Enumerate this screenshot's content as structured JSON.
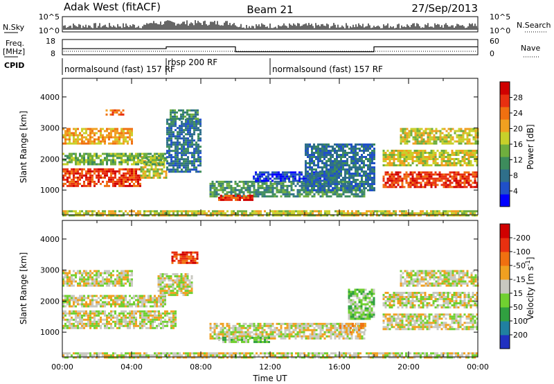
{
  "header": {
    "title": "Adak West (fitACF)",
    "beam": "Beam 21",
    "date": "27/Sep/2013"
  },
  "nsky_panel": {
    "left_label": "N.Sky",
    "right_label": "N.Search",
    "left_ticks": [
      "10^5",
      "10^0"
    ],
    "right_ticks": [
      "10^5",
      "10^0"
    ]
  },
  "freq_panel": {
    "left_label_line1": "Freq.",
    "left_label_line2": "[MHz]",
    "right_label": "Nave",
    "left_ticks": [
      "18",
      "8"
    ],
    "right_ticks": [
      "60",
      "0"
    ],
    "freq_steps": [
      {
        "from_ut": 0,
        "to_ut": 6,
        "mhz": 12.0
      },
      {
        "from_ut": 6,
        "to_ut": 10,
        "mhz": 13.2
      },
      {
        "from_ut": 10,
        "to_ut": 18,
        "mhz": 10.0
      },
      {
        "from_ut": 18,
        "to_ut": 24,
        "mhz": 13.2
      }
    ]
  },
  "cpid": {
    "label": "CPID",
    "segments": [
      {
        "from_ut": 0,
        "to_ut": 6,
        "text": "normalsound (fast) 157 RF"
      },
      {
        "from_ut": 6,
        "to_ut": 12,
        "text": "rbsp 200 RF"
      },
      {
        "from_ut": 12,
        "to_ut": 24,
        "text": "normalsound (fast) 157 RF"
      }
    ]
  },
  "chart_data": [
    {
      "type": "heatmap",
      "xlabel": "",
      "ylabel": "Slant Range [km]",
      "xlim": [
        0,
        24
      ],
      "ylim": [
        200,
        4600
      ],
      "yticks": [
        "1000",
        "2000",
        "3000",
        "4000"
      ],
      "colorbar": {
        "label": "Power [dB]",
        "ticks": [
          "4",
          "8",
          "12",
          "16",
          "20",
          "24",
          "28"
        ],
        "colors": [
          "#0000ff",
          "#2050c8",
          "#2f6f8a",
          "#3d8c5c",
          "#6fae3e",
          "#c8d02a",
          "#f0a020",
          "#f07010",
          "#e83010",
          "#d00000"
        ]
      },
      "bands": [
        {
          "from_ut": 0,
          "to_ut": 4.5,
          "range_lo": 1100,
          "range_hi": 1700,
          "level": 8
        },
        {
          "from_ut": 4.5,
          "to_ut": 6.0,
          "range_lo": 1400,
          "range_hi": 2100,
          "level": 5
        },
        {
          "from_ut": 0,
          "to_ut": 6.0,
          "range_lo": 1800,
          "range_hi": 2200,
          "level": 4
        },
        {
          "from_ut": 0,
          "to_ut": 4.0,
          "range_lo": 2500,
          "range_hi": 3000,
          "level": 6
        },
        {
          "from_ut": 2.5,
          "to_ut": 3.5,
          "range_lo": 3450,
          "range_hi": 3600,
          "level": 7
        },
        {
          "from_ut": 6.0,
          "to_ut": 8.0,
          "range_lo": 1600,
          "range_hi": 3300,
          "level": 2
        },
        {
          "from_ut": 6.2,
          "to_ut": 7.8,
          "range_lo": 3300,
          "range_hi": 3600,
          "level": 3
        },
        {
          "from_ut": 8.5,
          "to_ut": 17.5,
          "range_lo": 800,
          "range_hi": 1300,
          "level": 3
        },
        {
          "from_ut": 11.0,
          "to_ut": 15.5,
          "range_lo": 1300,
          "range_hi": 1600,
          "level": 1
        },
        {
          "from_ut": 9.0,
          "to_ut": 11.0,
          "range_lo": 650,
          "range_hi": 850,
          "level": 8
        },
        {
          "from_ut": 0,
          "to_ut": 24,
          "range_lo": 200,
          "range_hi": 350,
          "level": 5
        },
        {
          "from_ut": 18.5,
          "to_ut": 24,
          "range_lo": 1100,
          "range_hi": 1600,
          "level": 8
        },
        {
          "from_ut": 18.5,
          "to_ut": 24,
          "range_lo": 1800,
          "range_hi": 2300,
          "level": 5
        },
        {
          "from_ut": 19.5,
          "to_ut": 24,
          "range_lo": 2500,
          "range_hi": 3000,
          "level": 5
        },
        {
          "from_ut": 14.0,
          "to_ut": 18.0,
          "range_lo": 1000,
          "range_hi": 2500,
          "level": 2
        }
      ]
    },
    {
      "type": "heatmap",
      "xlabel": "Time UT",
      "ylabel": "Slant Range [km]",
      "xlim": [
        0,
        24
      ],
      "ylim": [
        200,
        4600
      ],
      "xticks": [
        "00:00",
        "04:00",
        "08:00",
        "12:00",
        "16:00",
        "20:00",
        "00:00"
      ],
      "yticks": [
        "1000",
        "2000",
        "3000",
        "4000"
      ],
      "colorbar": {
        "label": "Velocity [m s^-1]",
        "ticks": [
          "200",
          "100",
          "50",
          "15",
          "-15",
          "-50",
          "-100",
          "-200"
        ],
        "colors": [
          "#2030c0",
          "#2080a0",
          "#30a040",
          "#70d030",
          "#c8c8c0",
          "#f0a020",
          "#f07010",
          "#e83010",
          "#d00000"
        ]
      },
      "bands": [
        {
          "from_ut": 0,
          "to_ut": 6.5,
          "range_lo": 1100,
          "range_hi": 1700,
          "level": 4
        },
        {
          "from_ut": 0,
          "to_ut": 6.0,
          "range_lo": 1800,
          "range_hi": 2200,
          "level": 4
        },
        {
          "from_ut": 0,
          "to_ut": 4.0,
          "range_lo": 2500,
          "range_hi": 3000,
          "level": 4
        },
        {
          "from_ut": 5.5,
          "to_ut": 7.5,
          "range_lo": 2200,
          "range_hi": 2900,
          "level": 4
        },
        {
          "from_ut": 6.3,
          "to_ut": 7.8,
          "range_lo": 3200,
          "range_hi": 3600,
          "level": 7
        },
        {
          "from_ut": 8.5,
          "to_ut": 17.5,
          "range_lo": 800,
          "range_hi": 1300,
          "level": 4
        },
        {
          "from_ut": 9.0,
          "to_ut": 12.0,
          "range_lo": 650,
          "range_hi": 850,
          "level": 3
        },
        {
          "from_ut": 16.0,
          "to_ut": 17.5,
          "range_lo": 1000,
          "range_hi": 1300,
          "level": 5
        },
        {
          "from_ut": 0,
          "to_ut": 24,
          "range_lo": 200,
          "range_hi": 350,
          "level": 4
        },
        {
          "from_ut": 18.5,
          "to_ut": 24,
          "range_lo": 1100,
          "range_hi": 1600,
          "level": 4
        },
        {
          "from_ut": 18.5,
          "to_ut": 24,
          "range_lo": 1800,
          "range_hi": 2300,
          "level": 4
        },
        {
          "from_ut": 19.5,
          "to_ut": 24,
          "range_lo": 2500,
          "range_hi": 3000,
          "level": 4
        },
        {
          "from_ut": 16.5,
          "to_ut": 18.0,
          "range_lo": 1400,
          "range_hi": 2400,
          "level": 3
        }
      ]
    }
  ]
}
